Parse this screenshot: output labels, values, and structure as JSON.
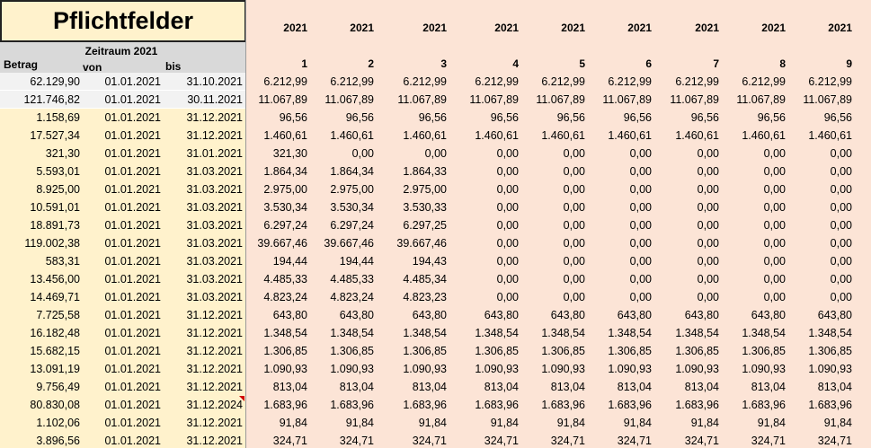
{
  "header": {
    "title": "Pflichtfelder",
    "period": "Zeitraum 2021",
    "columns": [
      "Betrag",
      "von",
      "bis"
    ],
    "years": [
      "2021",
      "2021",
      "2021",
      "2021",
      "2021",
      "2021",
      "2021",
      "2021",
      "2021"
    ],
    "months": [
      "1",
      "2",
      "3",
      "4",
      "5",
      "6",
      "7",
      "8",
      "9"
    ]
  },
  "rows": [
    {
      "betrag": "62.129,90",
      "von": "01.01.2021",
      "bis": "31.10.2021",
      "values": [
        "6.212,99",
        "6.212,99",
        "6.212,99",
        "6.212,99",
        "6.212,99",
        "6.212,99",
        "6.212,99",
        "6.212,99",
        "6.212,99"
      ]
    },
    {
      "betrag": "121.746,82",
      "von": "01.01.2021",
      "bis": "30.11.2021",
      "values": [
        "11.067,89",
        "11.067,89",
        "11.067,89",
        "11.067,89",
        "11.067,89",
        "11.067,89",
        "11.067,89",
        "11.067,89",
        "11.067,89"
      ]
    },
    {
      "betrag": "1.158,69",
      "von": "01.01.2021",
      "bis": "31.12.2021",
      "values": [
        "96,56",
        "96,56",
        "96,56",
        "96,56",
        "96,56",
        "96,56",
        "96,56",
        "96,56",
        "96,56"
      ]
    },
    {
      "betrag": "17.527,34",
      "von": "01.01.2021",
      "bis": "31.12.2021",
      "values": [
        "1.460,61",
        "1.460,61",
        "1.460,61",
        "1.460,61",
        "1.460,61",
        "1.460,61",
        "1.460,61",
        "1.460,61",
        "1.460,61"
      ]
    },
    {
      "betrag": "321,30",
      "von": "01.01.2021",
      "bis": "31.01.2021",
      "values": [
        "321,30",
        "0,00",
        "0,00",
        "0,00",
        "0,00",
        "0,00",
        "0,00",
        "0,00",
        "0,00"
      ]
    },
    {
      "betrag": "5.593,01",
      "von": "01.01.2021",
      "bis": "31.03.2021",
      "values": [
        "1.864,34",
        "1.864,34",
        "1.864,33",
        "0,00",
        "0,00",
        "0,00",
        "0,00",
        "0,00",
        "0,00"
      ]
    },
    {
      "betrag": "8.925,00",
      "von": "01.01.2021",
      "bis": "31.03.2021",
      "values": [
        "2.975,00",
        "2.975,00",
        "2.975,00",
        "0,00",
        "0,00",
        "0,00",
        "0,00",
        "0,00",
        "0,00"
      ]
    },
    {
      "betrag": "10.591,01",
      "von": "01.01.2021",
      "bis": "31.03.2021",
      "values": [
        "3.530,34",
        "3.530,34",
        "3.530,33",
        "0,00",
        "0,00",
        "0,00",
        "0,00",
        "0,00",
        "0,00"
      ]
    },
    {
      "betrag": "18.891,73",
      "von": "01.01.2021",
      "bis": "31.03.2021",
      "values": [
        "6.297,24",
        "6.297,24",
        "6.297,25",
        "0,00",
        "0,00",
        "0,00",
        "0,00",
        "0,00",
        "0,00"
      ]
    },
    {
      "betrag": "119.002,38",
      "von": "01.01.2021",
      "bis": "31.03.2021",
      "values": [
        "39.667,46",
        "39.667,46",
        "39.667,46",
        "0,00",
        "0,00",
        "0,00",
        "0,00",
        "0,00",
        "0,00"
      ]
    },
    {
      "betrag": "583,31",
      "von": "01.01.2021",
      "bis": "31.03.2021",
      "values": [
        "194,44",
        "194,44",
        "194,43",
        "0,00",
        "0,00",
        "0,00",
        "0,00",
        "0,00",
        "0,00"
      ]
    },
    {
      "betrag": "13.456,00",
      "von": "01.01.2021",
      "bis": "31.03.2021",
      "values": [
        "4.485,33",
        "4.485,33",
        "4.485,34",
        "0,00",
        "0,00",
        "0,00",
        "0,00",
        "0,00",
        "0,00"
      ]
    },
    {
      "betrag": "14.469,71",
      "von": "01.01.2021",
      "bis": "31.03.2021",
      "values": [
        "4.823,24",
        "4.823,24",
        "4.823,23",
        "0,00",
        "0,00",
        "0,00",
        "0,00",
        "0,00",
        "0,00"
      ]
    },
    {
      "betrag": "7.725,58",
      "von": "01.01.2021",
      "bis": "31.12.2021",
      "values": [
        "643,80",
        "643,80",
        "643,80",
        "643,80",
        "643,80",
        "643,80",
        "643,80",
        "643,80",
        "643,80"
      ]
    },
    {
      "betrag": "16.182,48",
      "von": "01.01.2021",
      "bis": "31.12.2021",
      "values": [
        "1.348,54",
        "1.348,54",
        "1.348,54",
        "1.348,54",
        "1.348,54",
        "1.348,54",
        "1.348,54",
        "1.348,54",
        "1.348,54"
      ]
    },
    {
      "betrag": "15.682,15",
      "von": "01.01.2021",
      "bis": "31.12.2021",
      "values": [
        "1.306,85",
        "1.306,85",
        "1.306,85",
        "1.306,85",
        "1.306,85",
        "1.306,85",
        "1.306,85",
        "1.306,85",
        "1.306,85"
      ]
    },
    {
      "betrag": "13.091,19",
      "von": "01.01.2021",
      "bis": "31.12.2021",
      "values": [
        "1.090,93",
        "1.090,93",
        "1.090,93",
        "1.090,93",
        "1.090,93",
        "1.090,93",
        "1.090,93",
        "1.090,93",
        "1.090,93"
      ]
    },
    {
      "betrag": "9.756,49",
      "von": "01.01.2021",
      "bis": "31.12.2021",
      "values": [
        "813,04",
        "813,04",
        "813,04",
        "813,04",
        "813,04",
        "813,04",
        "813,04",
        "813,04",
        "813,04"
      ]
    },
    {
      "betrag": "80.830,08",
      "von": "01.01.2021",
      "bis": "31.12.2024",
      "values": [
        "1.683,96",
        "1.683,96",
        "1.683,96",
        "1.683,96",
        "1.683,96",
        "1.683,96",
        "1.683,96",
        "1.683,96",
        "1.683,96"
      ]
    },
    {
      "betrag": "1.102,06",
      "von": "01.01.2021",
      "bis": "31.12.2021",
      "values": [
        "91,84",
        "91,84",
        "91,84",
        "91,84",
        "91,84",
        "91,84",
        "91,84",
        "91,84",
        "91,84"
      ]
    },
    {
      "betrag": "3.896,56",
      "von": "01.01.2021",
      "bis": "31.12.2021",
      "values": [
        "324,71",
        "324,71",
        "324,71",
        "324,71",
        "324,71",
        "324,71",
        "324,71",
        "324,71",
        "324,71"
      ]
    }
  ]
}
